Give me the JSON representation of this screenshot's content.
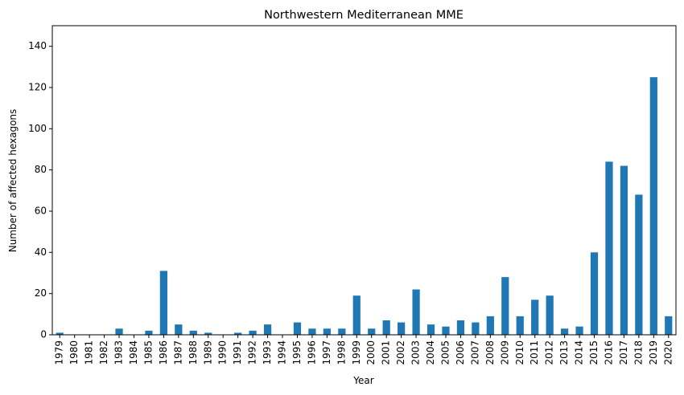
{
  "chart_data": {
    "type": "bar",
    "title": "Northwestern Mediterranean MME",
    "xlabel": "Year",
    "ylabel": "Number of affected hexagons",
    "ylim": [
      0,
      150
    ],
    "yticks": [
      0,
      20,
      40,
      60,
      80,
      100,
      120,
      140
    ],
    "grid": false,
    "legend": "none",
    "bar_color": "#1f77b4",
    "categories": [
      "1979",
      "1980",
      "1981",
      "1982",
      "1983",
      "1984",
      "1985",
      "1986",
      "1987",
      "1988",
      "1989",
      "1990",
      "1991",
      "1992",
      "1993",
      "1994",
      "1995",
      "1996",
      "1997",
      "1998",
      "1999",
      "2000",
      "2001",
      "2002",
      "2003",
      "2004",
      "2005",
      "2006",
      "2007",
      "2008",
      "2009",
      "2010",
      "2011",
      "2012",
      "2013",
      "2014",
      "2015",
      "2016",
      "2017",
      "2018",
      "2019",
      "2020"
    ],
    "values": [
      1,
      0,
      0,
      0,
      3,
      0,
      2,
      31,
      5,
      2,
      1,
      0,
      1,
      2,
      5,
      0,
      6,
      3,
      3,
      3,
      19,
      3,
      7,
      6,
      22,
      5,
      4,
      7,
      6,
      9,
      28,
      9,
      17,
      19,
      3,
      4,
      40,
      84,
      82,
      68,
      125,
      9
    ]
  }
}
